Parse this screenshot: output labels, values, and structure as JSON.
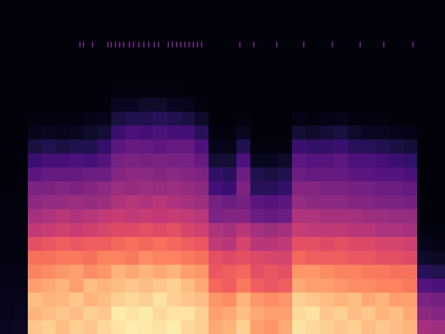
{
  "chart_data": {
    "type": "heatmap",
    "color": "magma",
    "tick_labels": false,
    "xlim": [
      0,
      32
    ],
    "ylim": [
      0,
      24
    ],
    "color_range": [
      0,
      1
    ],
    "cells": [
      [
        0.06,
        0.05,
        0.05,
        0.04,
        0.04,
        0.03,
        0.03,
        0.03,
        0.03,
        0.03,
        0.02,
        0.02,
        0.02,
        0.02,
        0.02,
        0.02,
        0.02,
        0.02,
        0.02,
        0.02,
        0.02,
        0.02,
        0.02,
        0.02
      ],
      [
        0.07,
        0.06,
        0.05,
        0.04,
        0.04,
        0.03,
        0.03,
        0.03,
        0.03,
        0.03,
        0.02,
        0.02,
        0.02,
        0.02,
        0.02,
        0.02,
        0.02,
        0.02,
        0.02,
        0.02,
        0.02,
        0.02,
        0.02,
        0.02
      ],
      [
        0.88,
        0.84,
        0.86,
        0.8,
        0.74,
        0.7,
        0.62,
        0.52,
        0.46,
        0.4,
        0.36,
        0.28,
        0.2,
        0.12,
        0.05,
        0.03,
        0.02,
        0.02,
        0.02,
        0.02,
        0.02,
        0.02,
        0.02,
        0.02
      ],
      [
        0.9,
        0.86,
        0.84,
        0.82,
        0.76,
        0.7,
        0.64,
        0.54,
        0.48,
        0.42,
        0.36,
        0.3,
        0.22,
        0.14,
        0.06,
        0.03,
        0.02,
        0.02,
        0.02,
        0.02,
        0.02,
        0.02,
        0.02,
        0.02
      ],
      [
        0.86,
        0.88,
        0.85,
        0.84,
        0.78,
        0.72,
        0.66,
        0.56,
        0.5,
        0.42,
        0.38,
        0.3,
        0.22,
        0.12,
        0.05,
        0.03,
        0.02,
        0.02,
        0.02,
        0.02,
        0.02,
        0.02,
        0.02,
        0.02
      ],
      [
        0.9,
        0.86,
        0.88,
        0.8,
        0.8,
        0.72,
        0.64,
        0.54,
        0.48,
        0.44,
        0.36,
        0.3,
        0.24,
        0.14,
        0.06,
        0.03,
        0.02,
        0.02,
        0.02,
        0.02,
        0.02,
        0.02,
        0.02,
        0.02
      ],
      [
        0.88,
        0.9,
        0.84,
        0.86,
        0.76,
        0.7,
        0.66,
        0.56,
        0.5,
        0.42,
        0.38,
        0.32,
        0.22,
        0.14,
        0.08,
        0.04,
        0.02,
        0.02,
        0.02,
        0.02,
        0.02,
        0.02,
        0.02,
        0.02
      ],
      [
        0.92,
        0.88,
        0.86,
        0.84,
        0.78,
        0.74,
        0.66,
        0.58,
        0.52,
        0.44,
        0.4,
        0.32,
        0.26,
        0.18,
        0.1,
        0.05,
        0.02,
        0.02,
        0.02,
        0.02,
        0.02,
        0.02,
        0.02,
        0.02
      ],
      [
        0.94,
        0.96,
        0.9,
        0.86,
        0.84,
        0.74,
        0.68,
        0.6,
        0.54,
        0.48,
        0.44,
        0.38,
        0.34,
        0.28,
        0.2,
        0.12,
        0.06,
        0.03,
        0.02,
        0.02,
        0.02,
        0.02,
        0.02,
        0.02
      ],
      [
        0.96,
        0.94,
        0.92,
        0.88,
        0.82,
        0.72,
        0.7,
        0.6,
        0.52,
        0.5,
        0.42,
        0.4,
        0.36,
        0.3,
        0.24,
        0.14,
        0.06,
        0.03,
        0.02,
        0.02,
        0.02,
        0.02,
        0.02,
        0.02
      ],
      [
        0.95,
        0.96,
        0.9,
        0.86,
        0.84,
        0.76,
        0.68,
        0.62,
        0.54,
        0.48,
        0.44,
        0.4,
        0.34,
        0.3,
        0.22,
        0.14,
        0.08,
        0.03,
        0.02,
        0.02,
        0.02,
        0.02,
        0.02,
        0.02
      ],
      [
        0.94,
        0.92,
        0.94,
        0.88,
        0.82,
        0.74,
        0.7,
        0.6,
        0.52,
        0.5,
        0.42,
        0.38,
        0.36,
        0.28,
        0.24,
        0.16,
        0.08,
        0.03,
        0.02,
        0.02,
        0.02,
        0.02,
        0.02,
        0.02
      ],
      [
        0.96,
        0.94,
        0.9,
        0.9,
        0.84,
        0.74,
        0.68,
        0.62,
        0.54,
        0.48,
        0.44,
        0.4,
        0.34,
        0.3,
        0.22,
        0.14,
        0.06,
        0.03,
        0.02,
        0.02,
        0.02,
        0.02,
        0.02,
        0.02
      ],
      [
        0.92,
        0.94,
        0.88,
        0.86,
        0.8,
        0.72,
        0.66,
        0.58,
        0.52,
        0.46,
        0.42,
        0.38,
        0.34,
        0.3,
        0.22,
        0.12,
        0.05,
        0.02,
        0.02,
        0.02,
        0.02,
        0.02,
        0.02,
        0.02
      ],
      [
        0.9,
        0.9,
        0.86,
        0.82,
        0.78,
        0.7,
        0.64,
        0.56,
        0.5,
        0.44,
        0.4,
        0.36,
        0.3,
        0.24,
        0.16,
        0.08,
        0.03,
        0.02,
        0.02,
        0.02,
        0.02,
        0.02,
        0.02,
        0.02
      ],
      [
        0.82,
        0.8,
        0.78,
        0.68,
        0.64,
        0.62,
        0.52,
        0.48,
        0.36,
        0.34,
        0.22,
        0.18,
        0.1,
        0.05,
        0.03,
        0.02,
        0.02,
        0.02,
        0.02,
        0.02,
        0.02,
        0.02,
        0.02,
        0.02
      ],
      [
        0.84,
        0.82,
        0.76,
        0.66,
        0.66,
        0.6,
        0.5,
        0.46,
        0.38,
        0.32,
        0.2,
        0.16,
        0.1,
        0.05,
        0.03,
        0.02,
        0.02,
        0.02,
        0.02,
        0.02,
        0.02,
        0.02,
        0.02,
        0.02
      ],
      [
        0.9,
        0.86,
        0.84,
        0.72,
        0.68,
        0.62,
        0.58,
        0.5,
        0.38,
        0.34,
        0.36,
        0.32,
        0.24,
        0.14,
        0.06,
        0.03,
        0.02,
        0.02,
        0.02,
        0.02,
        0.02,
        0.02,
        0.02,
        0.02
      ],
      [
        0.8,
        0.82,
        0.78,
        0.66,
        0.62,
        0.6,
        0.5,
        0.46,
        0.32,
        0.28,
        0.16,
        0.14,
        0.06,
        0.03,
        0.02,
        0.02,
        0.02,
        0.02,
        0.02,
        0.02,
        0.02,
        0.02,
        0.02,
        0.02
      ],
      [
        0.78,
        0.8,
        0.76,
        0.64,
        0.64,
        0.58,
        0.5,
        0.44,
        0.3,
        0.26,
        0.16,
        0.12,
        0.06,
        0.03,
        0.02,
        0.02,
        0.02,
        0.02,
        0.02,
        0.02,
        0.02,
        0.02,
        0.02,
        0.02
      ],
      [
        0.82,
        0.8,
        0.78,
        0.66,
        0.62,
        0.58,
        0.52,
        0.46,
        0.32,
        0.28,
        0.18,
        0.14,
        0.08,
        0.03,
        0.02,
        0.02,
        0.02,
        0.02,
        0.02,
        0.02,
        0.02,
        0.02,
        0.02,
        0.02
      ],
      [
        0.94,
        0.92,
        0.9,
        0.82,
        0.78,
        0.68,
        0.62,
        0.54,
        0.48,
        0.42,
        0.38,
        0.32,
        0.28,
        0.2,
        0.1,
        0.04,
        0.02,
        0.02,
        0.02,
        0.02,
        0.02,
        0.02,
        0.02,
        0.02
      ],
      [
        0.92,
        0.94,
        0.88,
        0.8,
        0.78,
        0.66,
        0.62,
        0.52,
        0.48,
        0.4,
        0.38,
        0.3,
        0.26,
        0.18,
        0.08,
        0.03,
        0.02,
        0.02,
        0.02,
        0.02,
        0.02,
        0.02,
        0.02,
        0.02
      ],
      [
        0.9,
        0.88,
        0.86,
        0.8,
        0.76,
        0.66,
        0.6,
        0.52,
        0.46,
        0.4,
        0.36,
        0.3,
        0.26,
        0.18,
        0.1,
        0.04,
        0.02,
        0.02,
        0.02,
        0.02,
        0.02,
        0.02,
        0.02,
        0.02
      ],
      [
        0.88,
        0.9,
        0.84,
        0.78,
        0.74,
        0.66,
        0.62,
        0.52,
        0.46,
        0.4,
        0.36,
        0.3,
        0.28,
        0.2,
        0.12,
        0.05,
        0.02,
        0.02,
        0.02,
        0.02,
        0.02,
        0.02,
        0.02,
        0.02
      ],
      [
        0.9,
        0.86,
        0.86,
        0.76,
        0.74,
        0.64,
        0.6,
        0.5,
        0.46,
        0.38,
        0.34,
        0.28,
        0.24,
        0.16,
        0.08,
        0.03,
        0.02,
        0.02,
        0.02,
        0.02,
        0.02,
        0.02,
        0.02,
        0.02
      ],
      [
        0.86,
        0.88,
        0.82,
        0.76,
        0.72,
        0.64,
        0.6,
        0.5,
        0.44,
        0.38,
        0.34,
        0.28,
        0.24,
        0.16,
        0.06,
        0.03,
        0.02,
        0.02,
        0.02,
        0.02,
        0.02,
        0.02,
        0.02,
        0.02
      ],
      [
        0.88,
        0.84,
        0.84,
        0.74,
        0.72,
        0.62,
        0.58,
        0.48,
        0.44,
        0.36,
        0.32,
        0.26,
        0.22,
        0.14,
        0.06,
        0.03,
        0.02,
        0.02,
        0.02,
        0.02,
        0.02,
        0.02,
        0.02,
        0.02
      ],
      [
        0.86,
        0.86,
        0.8,
        0.74,
        0.7,
        0.62,
        0.58,
        0.48,
        0.42,
        0.36,
        0.32,
        0.26,
        0.2,
        0.12,
        0.05,
        0.02,
        0.02,
        0.02,
        0.02,
        0.02,
        0.02,
        0.02,
        0.02,
        0.02
      ],
      [
        0.84,
        0.82,
        0.8,
        0.72,
        0.7,
        0.6,
        0.56,
        0.46,
        0.42,
        0.34,
        0.3,
        0.24,
        0.18,
        0.1,
        0.04,
        0.02,
        0.02,
        0.02,
        0.02,
        0.02,
        0.02,
        0.02,
        0.02,
        0.02
      ],
      [
        0.46,
        0.4,
        0.36,
        0.26,
        0.16,
        0.08,
        0.05,
        0.03,
        0.02,
        0.02,
        0.02,
        0.02,
        0.02,
        0.02,
        0.02,
        0.02,
        0.02,
        0.02,
        0.02,
        0.02,
        0.02,
        0.02,
        0.02,
        0.02
      ],
      [
        0.44,
        0.38,
        0.34,
        0.24,
        0.14,
        0.07,
        0.04,
        0.03,
        0.02,
        0.02,
        0.02,
        0.02,
        0.02,
        0.02,
        0.02,
        0.02,
        0.02,
        0.02,
        0.02,
        0.02,
        0.02,
        0.02,
        0.02,
        0.02
      ]
    ],
    "onsets": [
      5.75,
      6.0,
      6.65,
      7.75,
      8.0,
      8.3,
      8.6,
      8.9,
      9.3,
      9.6,
      10.0,
      10.35,
      10.7,
      11.1,
      11.4,
      12.1,
      12.4,
      12.7,
      13.0,
      13.3,
      13.6,
      13.9,
      14.2,
      14.5,
      17.25,
      18.25,
      19.9,
      21.85,
      23.9,
      25.9,
      27.6,
      29.7
    ]
  }
}
